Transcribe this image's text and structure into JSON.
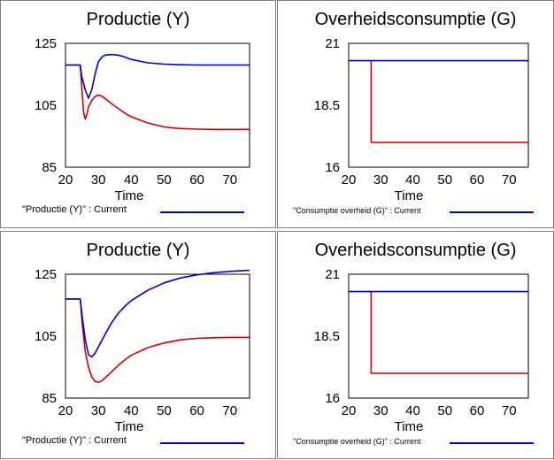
{
  "panels": [
    {
      "title": "Productie (Y)",
      "legend": "\"Productie (Y)\" : Current",
      "legend_small": false
    },
    {
      "title": "Overheidsconsumptie (G)",
      "legend": "\"Consumptie overheid (G)\" : Current",
      "legend_small": true
    },
    {
      "title": "Productie (Y)",
      "legend": "\"Productie (Y)\" : Current",
      "legend_small": false
    },
    {
      "title": "Overheidsconsumptie (G)",
      "legend": "\"Consumptie overheid (G)\" : Current",
      "legend_small": true
    }
  ],
  "chart_data": [
    {
      "type": "line",
      "title": "Productie (Y)",
      "xlabel": "Time",
      "xlim": [
        20,
        76
      ],
      "ylim": [
        85,
        125
      ],
      "xticks": [
        "20",
        "30",
        "40",
        "50",
        "60",
        "70"
      ],
      "yticks": [
        "125",
        "105",
        "85"
      ],
      "ytick_values": [
        125,
        105,
        85
      ],
      "series": [
        {
          "name": "\"Productie (Y)\" : Current",
          "color": "#0000cc",
          "x": [
            20,
            24.5,
            25,
            26,
            27,
            28,
            29,
            30,
            31,
            32,
            34,
            36,
            38,
            40,
            45,
            50,
            55,
            60,
            65,
            70,
            76
          ],
          "y": [
            118,
            118,
            114,
            110,
            107.3,
            110,
            115,
            119,
            120.5,
            121.2,
            121.4,
            121.2,
            120.6,
            119.8,
            118.7,
            118.3,
            118.1,
            118,
            118,
            118,
            118
          ]
        },
        {
          "color": "#cc0000",
          "x": [
            20,
            24.5,
            25,
            25.5,
            26,
            26.5,
            27,
            28,
            29,
            30,
            31,
            32,
            34,
            36,
            38,
            40,
            45,
            50,
            55,
            60,
            65,
            70,
            76
          ],
          "y": [
            118,
            118,
            110,
            103,
            100.5,
            102,
            104.5,
            106.5,
            107.8,
            108.3,
            108,
            107.2,
            105.5,
            104,
            102.5,
            101.3,
            99.3,
            98,
            97.5,
            97.3,
            97.2,
            97.2,
            97.2
          ]
        }
      ]
    },
    {
      "type": "line",
      "title": "Overheidsconsumptie (G)",
      "xlabel": "Time",
      "xlim": [
        20,
        76
      ],
      "ylim": [
        16,
        21
      ],
      "xticks": [
        "20",
        "30",
        "40",
        "50",
        "60",
        "70"
      ],
      "yticks": [
        "21",
        "18.5",
        "16"
      ],
      "ytick_values": [
        21,
        18.5,
        16
      ],
      "series": [
        {
          "name": "\"Consumptie overheid (G)\" : Current",
          "color": "#0000cc",
          "x": [
            20,
            76
          ],
          "y": [
            20.3,
            20.3
          ]
        },
        {
          "color": "#cc0000",
          "x": [
            26,
            26,
            27,
            27,
            76
          ],
          "y": [
            20.3,
            20.3,
            20.3,
            17,
            17
          ]
        }
      ]
    },
    {
      "type": "line",
      "title": "Productie (Y)",
      "xlabel": "Time",
      "xlim": [
        20,
        76
      ],
      "ylim": [
        85,
        125
      ],
      "xticks": [
        "20",
        "30",
        "40",
        "50",
        "60",
        "70"
      ],
      "yticks": [
        "125",
        "105",
        "85"
      ],
      "ytick_values": [
        125,
        105,
        85
      ],
      "series": [
        {
          "name": "\"Productie (Y)\" : Current",
          "color": "#0000cc",
          "x": [
            20,
            24.5,
            25,
            26,
            27,
            28,
            29,
            30,
            32,
            34,
            36,
            38,
            40,
            45,
            50,
            55,
            60,
            65,
            70,
            76
          ],
          "y": [
            117,
            117,
            112,
            104,
            99,
            98.3,
            99.5,
            101.5,
            105.5,
            109.3,
            112.3,
            114.6,
            116.5,
            119.8,
            122.2,
            123.8,
            124.8,
            125.5,
            125.9,
            126.3
          ]
        },
        {
          "color": "#cc0000",
          "x": [
            20,
            24.5,
            25,
            26,
            27,
            28,
            29,
            30,
            31,
            32,
            34,
            36,
            38,
            40,
            45,
            50,
            55,
            60,
            65,
            70,
            76
          ],
          "y": [
            117,
            117,
            110,
            100,
            95,
            91.8,
            90.4,
            90.1,
            90.5,
            91.5,
            93.5,
            95.5,
            97.3,
            98.8,
            101.3,
            102.8,
            103.8,
            104.3,
            104.5,
            104.6,
            104.6
          ]
        }
      ]
    },
    {
      "type": "line",
      "title": "Overheidsconsumptie (G)",
      "xlabel": "Time",
      "xlim": [
        20,
        76
      ],
      "ylim": [
        16,
        21
      ],
      "xticks": [
        "20",
        "30",
        "40",
        "50",
        "60",
        "70"
      ],
      "yticks": [
        "21",
        "18.5",
        "16"
      ],
      "ytick_values": [
        21,
        18.5,
        16
      ],
      "series": [
        {
          "name": "\"Consumptie overheid (G)\" : Current",
          "color": "#0000cc",
          "x": [
            20,
            76
          ],
          "y": [
            20.3,
            20.3
          ]
        },
        {
          "color": "#cc0000",
          "x": [
            26,
            26,
            27,
            27,
            76
          ],
          "y": [
            20.3,
            20.3,
            20.3,
            17,
            17
          ]
        }
      ]
    }
  ]
}
